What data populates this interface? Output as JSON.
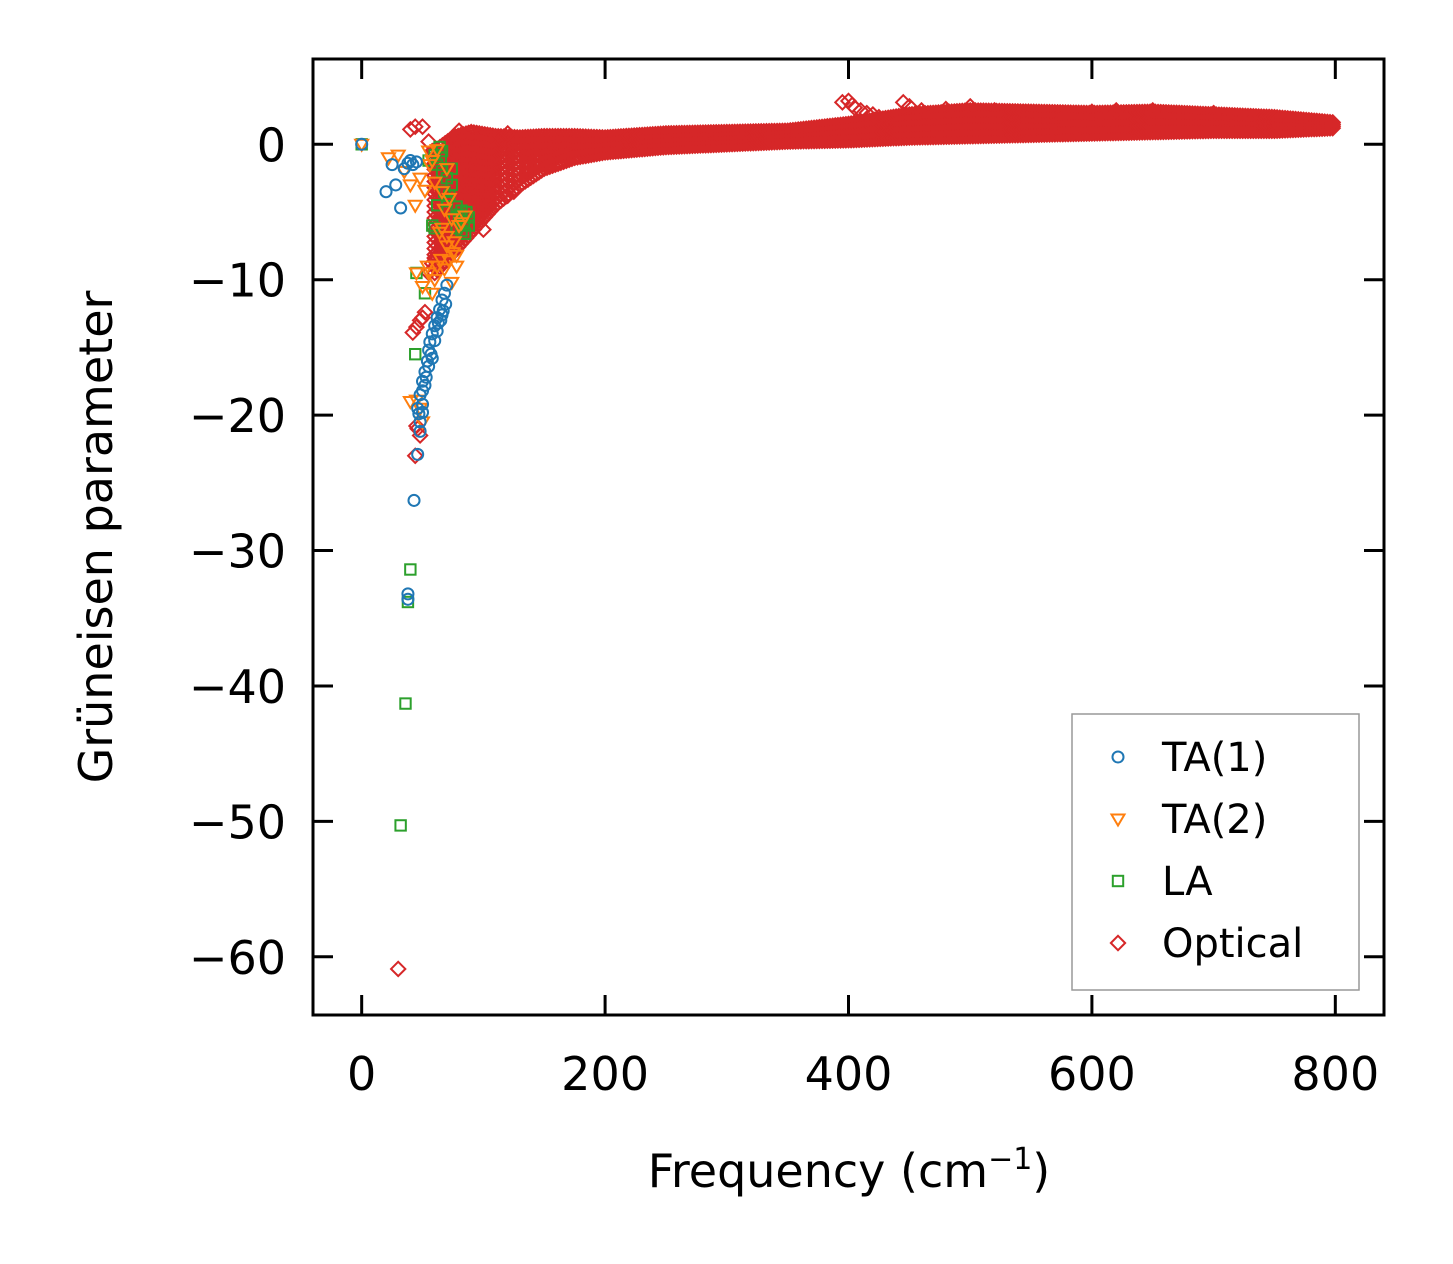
{
  "chart_data": {
    "type": "scatter",
    "title": "",
    "xlabel": "Frequency (cm",
    "xlabel_sup": "−1",
    "xlabel_end": ")",
    "ylabel": "Grüneisen parameter",
    "xlim": [
      -40,
      840
    ],
    "ylim": [
      -64.3,
      6.3
    ],
    "xticks": [
      0,
      200,
      400,
      600,
      800
    ],
    "xtick_labels": [
      "0",
      "200",
      "400",
      "600",
      "800"
    ],
    "yticks": [
      0,
      -10,
      -20,
      -30,
      -40,
      -50,
      -60
    ],
    "ytick_labels": [
      "0",
      "−10",
      "−20",
      "−30",
      "−40",
      "−50",
      "−60"
    ],
    "grid": false,
    "legend_position": "lower-right",
    "series": [
      {
        "name": "TA(1)",
        "marker": "circle",
        "color": "#1f77b4",
        "points": [
          [
            0,
            0
          ],
          [
            20,
            -3.5
          ],
          [
            25,
            -1.5
          ],
          [
            28,
            -3
          ],
          [
            32,
            -4.7
          ],
          [
            35,
            -1.8
          ],
          [
            38,
            -1.4
          ],
          [
            40,
            -1.2
          ],
          [
            42,
            -1.5
          ],
          [
            45,
            -1.3
          ],
          [
            38,
            -33.2
          ],
          [
            38,
            -33.6
          ],
          [
            43,
            -26.3
          ],
          [
            46,
            -22.9
          ],
          [
            48,
            -21.2
          ],
          [
            50,
            -19.8
          ],
          [
            50,
            -19.2
          ],
          [
            48,
            -18.5
          ],
          [
            50,
            -17.5
          ],
          [
            52,
            -16.8
          ],
          [
            54,
            -16
          ],
          [
            55,
            -15.2
          ],
          [
            56,
            -14.6
          ],
          [
            58,
            -14
          ],
          [
            60,
            -13.4
          ],
          [
            62,
            -12.8
          ],
          [
            64,
            -12.2
          ],
          [
            66,
            -11.5
          ],
          [
            68,
            -11
          ],
          [
            70,
            -10.4
          ],
          [
            52,
            -17.8
          ],
          [
            55,
            -16.4
          ],
          [
            57,
            -15.5
          ],
          [
            60,
            -14.5
          ],
          [
            62,
            -13.8
          ],
          [
            65,
            -13
          ],
          [
            67,
            -12.3
          ],
          [
            69,
            -11.8
          ],
          [
            46,
            -19.5
          ],
          [
            53,
            -17.2
          ],
          [
            58,
            -15.8
          ],
          [
            63,
            -13.2
          ],
          [
            66,
            -12.6
          ],
          [
            48,
            -20.5
          ],
          [
            50,
            -18.2
          ],
          [
            47,
            -19.9
          ]
        ]
      },
      {
        "name": "TA(2)",
        "marker": "triangle",
        "color": "#ff7f0e",
        "points": [
          [
            0,
            0
          ],
          [
            22,
            -1
          ],
          [
            30,
            -0.8
          ],
          [
            35,
            -2
          ],
          [
            40,
            -3
          ],
          [
            44,
            -4.5
          ],
          [
            48,
            -2.5
          ],
          [
            52,
            -3.4
          ],
          [
            56,
            -1.5
          ],
          [
            40,
            -19
          ],
          [
            45,
            -18.9
          ],
          [
            50,
            -20.5
          ],
          [
            48,
            -19.5
          ],
          [
            45,
            -9.5
          ],
          [
            50,
            -10.5
          ],
          [
            55,
            -9.5
          ],
          [
            60,
            -10
          ],
          [
            62,
            -9
          ],
          [
            65,
            -8.5
          ],
          [
            68,
            -9.2
          ],
          [
            70,
            -7.5
          ],
          [
            72,
            -8.6
          ],
          [
            75,
            -8
          ],
          [
            78,
            -9
          ],
          [
            64,
            -6.5
          ],
          [
            66,
            -6.2
          ],
          [
            70,
            -6.8
          ],
          [
            74,
            -5.5
          ],
          [
            80,
            -6
          ],
          [
            76,
            -7.2
          ],
          [
            82,
            -5.8
          ],
          [
            85,
            -5.3
          ],
          [
            68,
            -4.8
          ],
          [
            72,
            -4
          ],
          [
            66,
            -3.5
          ],
          [
            60,
            -2.8
          ],
          [
            58,
            -1.2
          ],
          [
            55,
            -0.5
          ],
          [
            62,
            -0.4
          ],
          [
            70,
            -1.8
          ],
          [
            74,
            -10.2
          ],
          [
            78,
            -8.2
          ],
          [
            54,
            -9
          ],
          [
            58,
            -11
          ]
        ]
      },
      {
        "name": "LA",
        "marker": "square",
        "color": "#2ca02c",
        "points": [
          [
            0,
            0
          ],
          [
            32,
            -50.3
          ],
          [
            36,
            -41.3
          ],
          [
            38,
            -33.8
          ],
          [
            40,
            -31.4
          ],
          [
            44,
            -15.5
          ],
          [
            45,
            -9.5
          ],
          [
            52,
            -11
          ],
          [
            55,
            -1.2
          ],
          [
            58,
            -6
          ],
          [
            60,
            -6.2
          ],
          [
            62,
            -4.5
          ],
          [
            64,
            -0.2
          ],
          [
            65,
            -1
          ],
          [
            66,
            -2
          ],
          [
            68,
            -3.5
          ],
          [
            70,
            -2.5
          ],
          [
            72,
            -3.8
          ],
          [
            74,
            -1.8
          ],
          [
            76,
            -5.5
          ],
          [
            78,
            -6.2
          ],
          [
            80,
            -5.2
          ],
          [
            82,
            -6.4
          ],
          [
            84,
            -5.8
          ],
          [
            86,
            -5
          ],
          [
            88,
            -6
          ],
          [
            60,
            -0.8
          ],
          [
            62,
            -1.5
          ],
          [
            66,
            -0.5
          ],
          [
            70,
            -4.2
          ],
          [
            74,
            -3
          ],
          [
            78,
            -4.6
          ],
          [
            82,
            -4.9
          ],
          [
            85,
            -6.6
          ],
          [
            88,
            -5.4
          ]
        ]
      },
      {
        "name": "Optical",
        "marker": "diamond",
        "color": "#d62728",
        "points": [
          [
            30,
            -60.9
          ],
          [
            44,
            -23
          ],
          [
            46,
            -21
          ],
          [
            48,
            -21.5
          ],
          [
            45,
            -20.8
          ],
          [
            42,
            -13.9
          ],
          [
            45,
            -13.5
          ],
          [
            48,
            -13
          ],
          [
            50,
            -12.8
          ],
          [
            52,
            -12.4
          ],
          [
            55,
            -9.5
          ],
          [
            58,
            -8.8
          ],
          [
            60,
            -8.4
          ],
          [
            62,
            -8
          ],
          [
            40,
            1.1
          ],
          [
            44,
            1.3
          ],
          [
            50,
            1.3
          ],
          [
            55,
            0.2
          ],
          [
            58,
            -0.5
          ],
          [
            60,
            -1.5
          ],
          [
            62,
            -2.5
          ],
          [
            64,
            -3.2
          ],
          [
            66,
            -4
          ],
          [
            68,
            -4.6
          ],
          [
            70,
            -5
          ],
          [
            72,
            -5.6
          ],
          [
            74,
            -6
          ],
          [
            76,
            -6.3
          ],
          [
            78,
            -5.8
          ],
          [
            80,
            -5
          ],
          [
            82,
            -4.2
          ],
          [
            85,
            -3.5
          ],
          [
            88,
            -3
          ],
          [
            90,
            -2.5
          ],
          [
            95,
            -2
          ],
          [
            100,
            -6.3
          ],
          [
            105,
            -4
          ],
          [
            110,
            -3.2
          ],
          [
            120,
            -3.8
          ],
          [
            125,
            -3.5
          ],
          [
            120,
            0.8
          ],
          [
            100,
            0.6
          ],
          [
            80,
            1
          ],
          [
            90,
            0.8
          ],
          [
            85,
            0.5
          ],
          [
            95,
            0.3
          ],
          [
            75,
            0.4
          ],
          [
            70,
            -0.4
          ],
          [
            110,
            -0.8
          ],
          [
            130,
            -1.2
          ],
          [
            140,
            -0.5
          ],
          [
            150,
            0.3
          ],
          [
            160,
            0.2
          ],
          [
            395,
            3.1
          ],
          [
            400,
            3.2
          ],
          [
            403,
            2.9
          ],
          [
            405,
            2.7
          ],
          [
            410,
            2.5
          ],
          [
            415,
            2.3
          ],
          [
            420,
            2.2
          ],
          [
            425,
            2
          ],
          [
            445,
            3.1
          ],
          [
            450,
            2.8
          ],
          [
            460,
            2.5
          ],
          [
            480,
            2.6
          ],
          [
            500,
            2.8
          ],
          [
            520,
            2.5
          ],
          [
            600,
            2.4
          ],
          [
            620,
            2.5
          ],
          [
            650,
            2.5
          ],
          [
            700,
            2.3
          ]
        ],
        "bands": [
          {
            "x": [
              60,
              75,
              90,
              110,
              130,
              150,
              175,
              200,
              250,
              300,
              350,
              400,
              450,
              500,
              550,
              600,
              650,
              700,
              750,
              800
            ],
            "upper": [
              -0.5,
              0.5,
              0.9,
              0.6,
              0.5,
              0.6,
              0.6,
              0.5,
              0.8,
              0.9,
              1.0,
              1.5,
              2.2,
              2.5,
              2.4,
              2.3,
              2.4,
              2.2,
              2.0,
              1.6
            ],
            "lower": [
              -9.5,
              -8.0,
              -6.5,
              -4.5,
              -3.0,
              -1.8,
              -1.0,
              -0.6,
              -0.2,
              0.0,
              0.2,
              0.3,
              0.5,
              0.6,
              0.7,
              0.8,
              0.9,
              1.0,
              1.0,
              1.2
            ]
          }
        ]
      }
    ]
  }
}
